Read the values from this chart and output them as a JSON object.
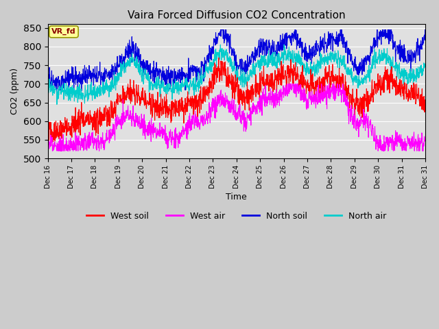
{
  "title": "Vaira Forced Diffusion CO2 Concentration",
  "xlabel": "Time",
  "ylabel": "CO2 (ppm)",
  "ylim": [
    500,
    860
  ],
  "xlim_days": [
    0,
    16
  ],
  "yticks": [
    500,
    550,
    600,
    650,
    700,
    750,
    800,
    850
  ],
  "xtick_labels": [
    "Dec 16",
    "Dec 17",
    "Dec 18",
    "Dec 19",
    "Dec 20",
    "Dec 21",
    "Dec 22",
    "Dec 23",
    "Dec 24",
    "Dec 25",
    "Dec 26",
    "Dec 27",
    "Dec 28",
    "Dec 29",
    "Dec 30",
    "Dec 31"
  ],
  "colors": {
    "west_soil": "#ff0000",
    "west_air": "#ff00ff",
    "north_soil": "#0000dd",
    "north_air": "#00cccc"
  },
  "legend_label": "VR_fd",
  "background_color": "#cccccc",
  "plot_bg_color": "#e0e0e0",
  "n_days": 16,
  "pts_per_day": 96,
  "seed": 42
}
